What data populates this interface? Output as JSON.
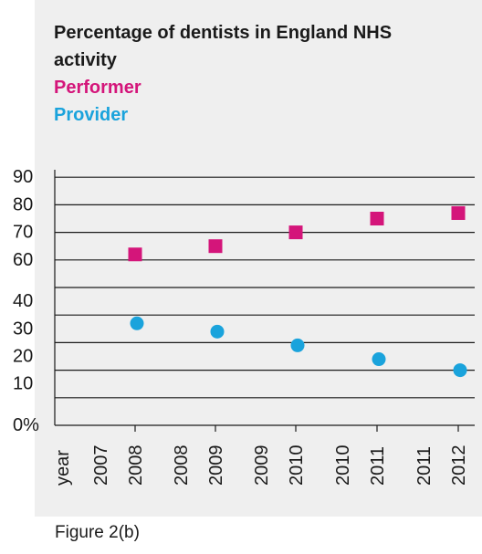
{
  "chart_data": {
    "type": "scatter",
    "title_lines": [
      "Percentage of dentists in England NHS",
      "activity"
    ],
    "y_ticks": [
      "90",
      "80",
      "70",
      "60",
      "40",
      "30",
      "20",
      "10",
      "0%"
    ],
    "ylim": [
      0,
      90
    ],
    "x_header": "year",
    "x_tick_labels": [
      [
        "2007",
        "2008"
      ],
      [
        "2008",
        "2009"
      ],
      [
        "2009",
        "2010"
      ],
      [
        "2010",
        "2011"
      ],
      [
        "2011",
        "2012"
      ]
    ],
    "grid": true,
    "legend_position": "top-left",
    "series": [
      {
        "name": "Performer",
        "marker": "square",
        "color": "#d4157a",
        "values": [
          62,
          65,
          70,
          75,
          77
        ]
      },
      {
        "name": "Provider",
        "marker": "circle",
        "color": "#1aa3dc",
        "values": [
          37,
          34,
          29,
          24,
          20
        ]
      }
    ]
  },
  "caption": "Figure 2(b)"
}
